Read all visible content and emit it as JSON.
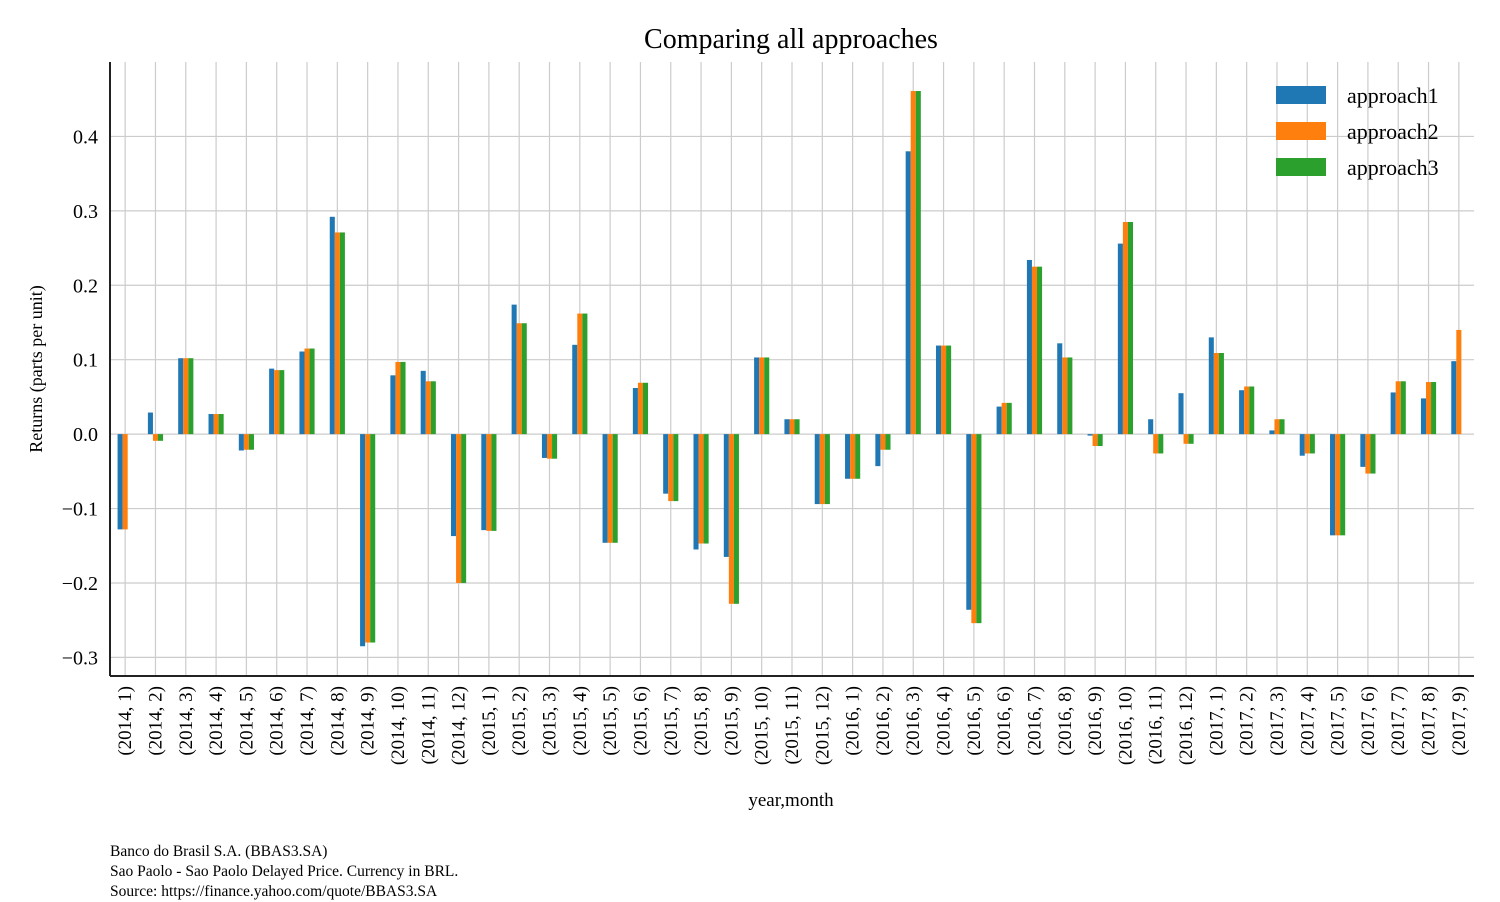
{
  "chart_data": {
    "type": "bar",
    "title": "Comparing all approaches",
    "xlabel": "year,month",
    "ylabel": "Returns (parts per unit)",
    "ylim": [
      -0.325,
      0.5
    ],
    "yticks": [
      -0.3,
      -0.2,
      -0.1,
      0.0,
      0.1,
      0.2,
      0.3,
      0.4
    ],
    "ytick_labels": [
      "−0.3",
      "−0.2",
      "−0.1",
      "0.0",
      "0.1",
      "0.2",
      "0.3",
      "0.4"
    ],
    "grid": true,
    "legend_position": "top-right",
    "categories": [
      "(2014, 1)",
      "(2014, 2)",
      "(2014, 3)",
      "(2014, 4)",
      "(2014, 5)",
      "(2014, 6)",
      "(2014, 7)",
      "(2014, 8)",
      "(2014, 9)",
      "(2014, 10)",
      "(2014, 11)",
      "(2014, 12)",
      "(2015, 1)",
      "(2015, 2)",
      "(2015, 3)",
      "(2015, 4)",
      "(2015, 5)",
      "(2015, 6)",
      "(2015, 7)",
      "(2015, 8)",
      "(2015, 9)",
      "(2015, 10)",
      "(2015, 11)",
      "(2015, 12)",
      "(2016, 1)",
      "(2016, 2)",
      "(2016, 3)",
      "(2016, 4)",
      "(2016, 5)",
      "(2016, 6)",
      "(2016, 7)",
      "(2016, 8)",
      "(2016, 9)",
      "(2016, 10)",
      "(2016, 11)",
      "(2016, 12)",
      "(2017, 1)",
      "(2017, 2)",
      "(2017, 3)",
      "(2017, 4)",
      "(2017, 5)",
      "(2017, 6)",
      "(2017, 7)",
      "(2017, 8)",
      "(2017, 9)"
    ],
    "series": [
      {
        "name": "approach1",
        "color": "#1f77b4",
        "values": [
          -0.128,
          0.029,
          0.102,
          0.027,
          -0.022,
          0.088,
          0.111,
          0.292,
          -0.285,
          0.079,
          0.085,
          -0.137,
          -0.129,
          0.174,
          -0.032,
          0.12,
          -0.146,
          0.062,
          -0.08,
          -0.155,
          -0.165,
          0.103,
          0.02,
          -0.094,
          -0.06,
          -0.043,
          0.38,
          0.119,
          -0.236,
          0.037,
          0.234,
          0.122,
          -0.002,
          0.256,
          0.02,
          0.055,
          0.13,
          0.059,
          0.005,
          -0.029,
          -0.136,
          -0.044,
          0.056,
          0.048,
          0.098
        ]
      },
      {
        "name": "approach2",
        "color": "#ff7f0e",
        "values": [
          -0.128,
          -0.009,
          0.102,
          0.027,
          -0.021,
          0.086,
          0.115,
          0.271,
          -0.28,
          0.097,
          0.071,
          -0.2,
          -0.13,
          0.149,
          -0.033,
          0.162,
          -0.146,
          0.069,
          -0.09,
          -0.147,
          -0.228,
          0.103,
          0.02,
          -0.094,
          -0.06,
          -0.021,
          0.461,
          0.119,
          -0.254,
          0.042,
          0.225,
          0.103,
          -0.016,
          0.285,
          -0.026,
          -0.013,
          0.109,
          0.064,
          0.02,
          -0.026,
          -0.136,
          -0.053,
          0.071,
          0.07,
          0.14
        ]
      },
      {
        "name": "approach3",
        "color": "#2ca02c",
        "values": [
          null,
          -0.009,
          0.102,
          0.027,
          -0.021,
          0.086,
          0.115,
          0.271,
          -0.28,
          0.097,
          0.071,
          -0.2,
          -0.13,
          0.149,
          -0.033,
          0.162,
          -0.146,
          0.069,
          -0.09,
          -0.147,
          -0.228,
          0.103,
          0.02,
          -0.094,
          -0.06,
          -0.021,
          0.461,
          0.119,
          -0.254,
          0.042,
          0.225,
          0.103,
          -0.016,
          0.285,
          -0.026,
          -0.013,
          0.109,
          0.064,
          0.02,
          -0.026,
          -0.136,
          -0.053,
          0.071,
          0.07,
          null
        ]
      }
    ]
  },
  "footnotes": [
    "Banco do Brasil S.A. (BBAS3.SA)",
    "Sao Paolo - Sao Paolo Delayed Price. Currency in BRL.",
    "Source: https://finance.yahoo.com/quote/BBAS3.SA"
  ]
}
